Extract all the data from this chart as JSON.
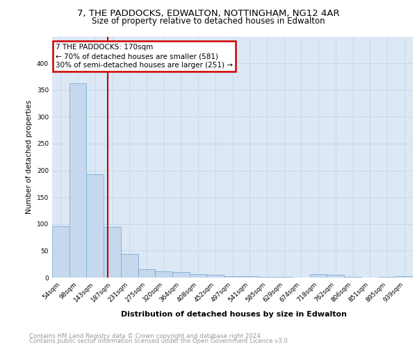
{
  "title1": "7, THE PADDOCKS, EDWALTON, NOTTINGHAM, NG12 4AR",
  "title2": "Size of property relative to detached houses in Edwalton",
  "xlabel": "Distribution of detached houses by size in Edwalton",
  "ylabel": "Number of detached properties",
  "footnote1": "Contains HM Land Registry data © Crown copyright and database right 2024.",
  "footnote2": "Contains public sector information licensed under the Open Government Licence v3.0.",
  "bar_labels": [
    "54sqm",
    "98sqm",
    "143sqm",
    "187sqm",
    "231sqm",
    "275sqm",
    "320sqm",
    "364sqm",
    "408sqm",
    "452sqm",
    "497sqm",
    "541sqm",
    "585sqm",
    "629sqm",
    "674sqm",
    "718sqm",
    "762sqm",
    "806sqm",
    "851sqm",
    "895sqm",
    "939sqm"
  ],
  "bar_values": [
    96,
    362,
    193,
    95,
    44,
    16,
    12,
    10,
    7,
    5,
    3,
    2,
    1,
    1,
    0,
    6,
    5,
    1,
    0,
    1,
    2
  ],
  "bar_color": "#c5d8ed",
  "bar_edge_color": "#7bafd4",
  "vline_x": 2.72,
  "vline_color": "#cc0000",
  "annotation_line1": "7 THE PADDOCKS: 170sqm",
  "annotation_line2": "← 70% of detached houses are smaller (581)",
  "annotation_line3": "30% of semi-detached houses are larger (251) →",
  "annotation_box_color": "#cc0000",
  "annotation_facecolor": "white",
  "ylim": [
    0,
    450
  ],
  "yticks": [
    0,
    50,
    100,
    150,
    200,
    250,
    300,
    350,
    400
  ],
  "grid_color": "#c8d8e8",
  "background_color": "#dce8f5",
  "title1_fontsize": 9.5,
  "title2_fontsize": 8.5,
  "ylabel_fontsize": 7.5,
  "xlabel_fontsize": 8,
  "tick_fontsize": 6.5,
  "footnote_fontsize": 6.2,
  "annotation_fontsize": 7.5
}
